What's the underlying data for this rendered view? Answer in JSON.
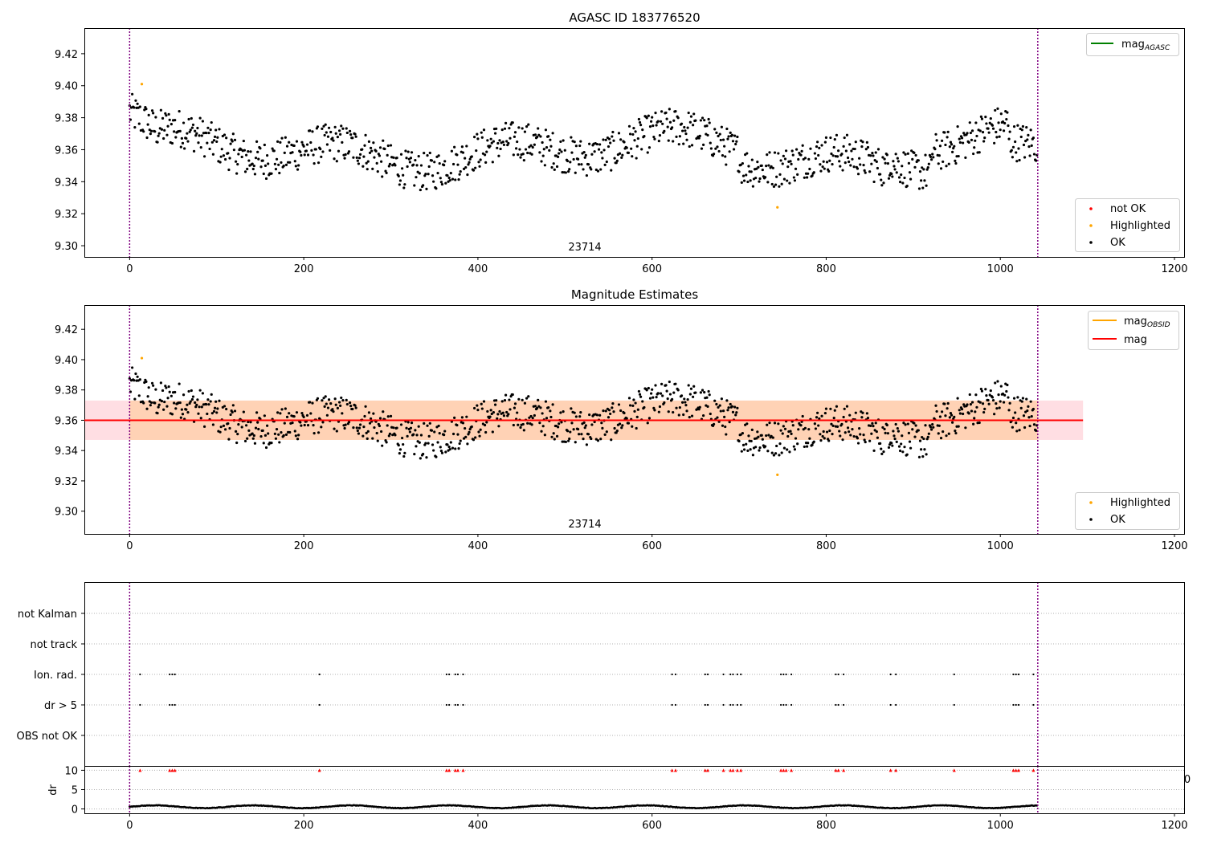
{
  "chart_data": [
    {
      "type": "scatter",
      "title": "AGASC ID 183776520",
      "xlim": [
        -52,
        1212
      ],
      "ylim": [
        9.293,
        9.436
      ],
      "xticks": [
        0,
        200,
        400,
        600,
        800,
        1000,
        1200
      ],
      "yticks": [
        9.3,
        9.32,
        9.34,
        9.36,
        9.38,
        9.4,
        9.42
      ],
      "grid": false,
      "annotation": "23714",
      "vlines": [
        0,
        1043
      ],
      "vline_color": "#800080",
      "legend_upper": {
        "location": "upper-right",
        "entries": [
          {
            "label": "mag",
            "subscript": "AGASC",
            "color": "#008000",
            "kind": "line"
          }
        ]
      },
      "legend_lower": {
        "location": "lower-right",
        "entries": [
          {
            "label": "not OK",
            "color": "#ff0000",
            "kind": "marker"
          },
          {
            "label": "Highlighted",
            "color": "#ffa500",
            "kind": "marker"
          },
          {
            "label": "OK",
            "color": "#000000",
            "kind": "marker"
          }
        ]
      },
      "series": [
        {
          "name": "OK",
          "color": "#000000",
          "points_note": "1043 samples, index 0-1042"
        },
        {
          "name": "Highlighted",
          "color": "#ffa500",
          "points": [
            [
              14,
              9.401
            ],
            [
              744,
              9.324
            ]
          ]
        }
      ]
    },
    {
      "type": "scatter",
      "title": "Magnitude Estimates",
      "xlim": [
        -52,
        1212
      ],
      "ylim": [
        9.285,
        9.436
      ],
      "xticks": [
        0,
        200,
        400,
        600,
        800,
        1000,
        1200
      ],
      "yticks": [
        9.3,
        9.32,
        9.34,
        9.36,
        9.38,
        9.4,
        9.42
      ],
      "grid": false,
      "annotation": "23714",
      "vlines": [
        0,
        1043
      ],
      "mag": 9.36,
      "mag_band": [
        9.347,
        9.373
      ],
      "mag_band_color": "#ffb6c1",
      "obsid_band_color": "#ffa500",
      "band_x_range": [
        -52,
        1095
      ],
      "obsid_band_x_range": [
        0,
        1043
      ],
      "legend_upper": {
        "location": "upper-right",
        "entries": [
          {
            "label": "mag",
            "subscript": "OBSID",
            "color": "#ffa500",
            "kind": "line"
          },
          {
            "label": "mag",
            "subscript": "",
            "color": "#ff0000",
            "kind": "line"
          }
        ]
      },
      "legend_lower": {
        "location": "lower-right",
        "entries": [
          {
            "label": "Highlighted",
            "color": "#ffa500",
            "kind": "marker"
          },
          {
            "label": "OK",
            "color": "#000000",
            "kind": "marker"
          }
        ]
      }
    },
    {
      "type": "scatter",
      "title": "",
      "xlim": [
        -52,
        1212
      ],
      "flag_labels": [
        "not Kalman",
        "not track",
        "Ion. rad.",
        "dr > 5",
        "OBS not OK"
      ],
      "flag_events": {
        "Ion. rad.": [
          12,
          46,
          49,
          52,
          218,
          364,
          367,
          374,
          377,
          383,
          623,
          627,
          661,
          664,
          682,
          690,
          693,
          698,
          702,
          748,
          751,
          754,
          760,
          811,
          814,
          820,
          874,
          880,
          947,
          1015,
          1018,
          1021,
          1038
        ],
        "dr > 5": [
          12,
          46,
          49,
          52,
          218,
          364,
          367,
          374,
          377,
          383,
          623,
          627,
          661,
          664,
          682,
          690,
          693,
          698,
          702,
          748,
          751,
          754,
          760,
          811,
          814,
          820,
          874,
          880,
          947,
          1015,
          1018,
          1021,
          1038
        ]
      },
      "dr_ylabel": "dr",
      "dr_yticks": [
        0,
        5,
        10
      ],
      "dr_ylim": [
        -0.5,
        10.5
      ],
      "dr_clip_marker_color": "#ff0000",
      "xticks": [
        0,
        200,
        400,
        600,
        800,
        1000,
        1200
      ],
      "clipped_tick_label": "0"
    }
  ]
}
